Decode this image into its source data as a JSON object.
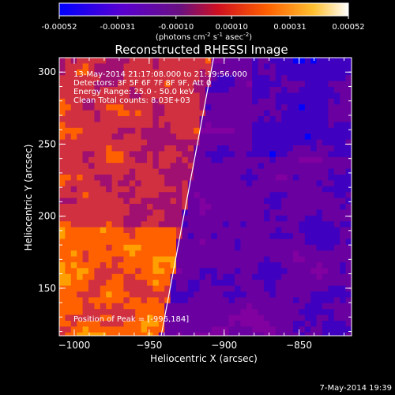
{
  "colorbar": {
    "ticks": [
      "-0.00052",
      "-0.00031",
      "-0.00010",
      "0.00010",
      "0.00031",
      "0.00052"
    ],
    "units_main": "(photons cm",
    "units_exp1": "-2",
    "units_mid": " s",
    "units_exp2": "-1",
    "units_end": " asec",
    "units_exp3": "-2",
    "units_close": ")"
  },
  "title": "Reconstructed RHESSI Image",
  "info": {
    "line1": "13-May-2014 21:17:08.000 to 21:19:56.000",
    "line2": "Detectors: 3F 5F 6F 7F 8F 9F, Att 0",
    "line3": "Energy Range: 25.0 - 50.0 keV",
    "line4": "Clean     Total counts: 8.03E+03",
    "peak": "Position of Peak = [-996,184]"
  },
  "footer_date": "7-May-2014 19:39",
  "chart_data": {
    "type": "heatmap",
    "title": "Reconstructed RHESSI Image",
    "xlabel": "Heliocentric X (arcsec)",
    "ylabel": "Heliocentric Y (arcsec)",
    "xlim": [
      -1010,
      -815
    ],
    "ylim": [
      117,
      310
    ],
    "x_ticks": [
      -1000,
      -950,
      -900,
      -850
    ],
    "y_ticks": [
      150,
      200,
      250,
      300
    ],
    "x_tick_labels": [
      "−1000",
      "−950",
      "−900",
      "−850"
    ],
    "y_tick_labels": [
      "150",
      "200",
      "250",
      "300"
    ],
    "colorbar_range": [
      -0.00052,
      0.00052
    ],
    "limb_line": [
      [
        -942,
        117
      ],
      [
        -907,
        310
      ]
    ],
    "colormap": [
      "#0000ff",
      "#4000c0",
      "#6a00a0",
      "#8000a0",
      "#a01070",
      "#d03040",
      "#ff6000",
      "#ffa000",
      "#ffe040",
      "#ffffff"
    ]
  }
}
